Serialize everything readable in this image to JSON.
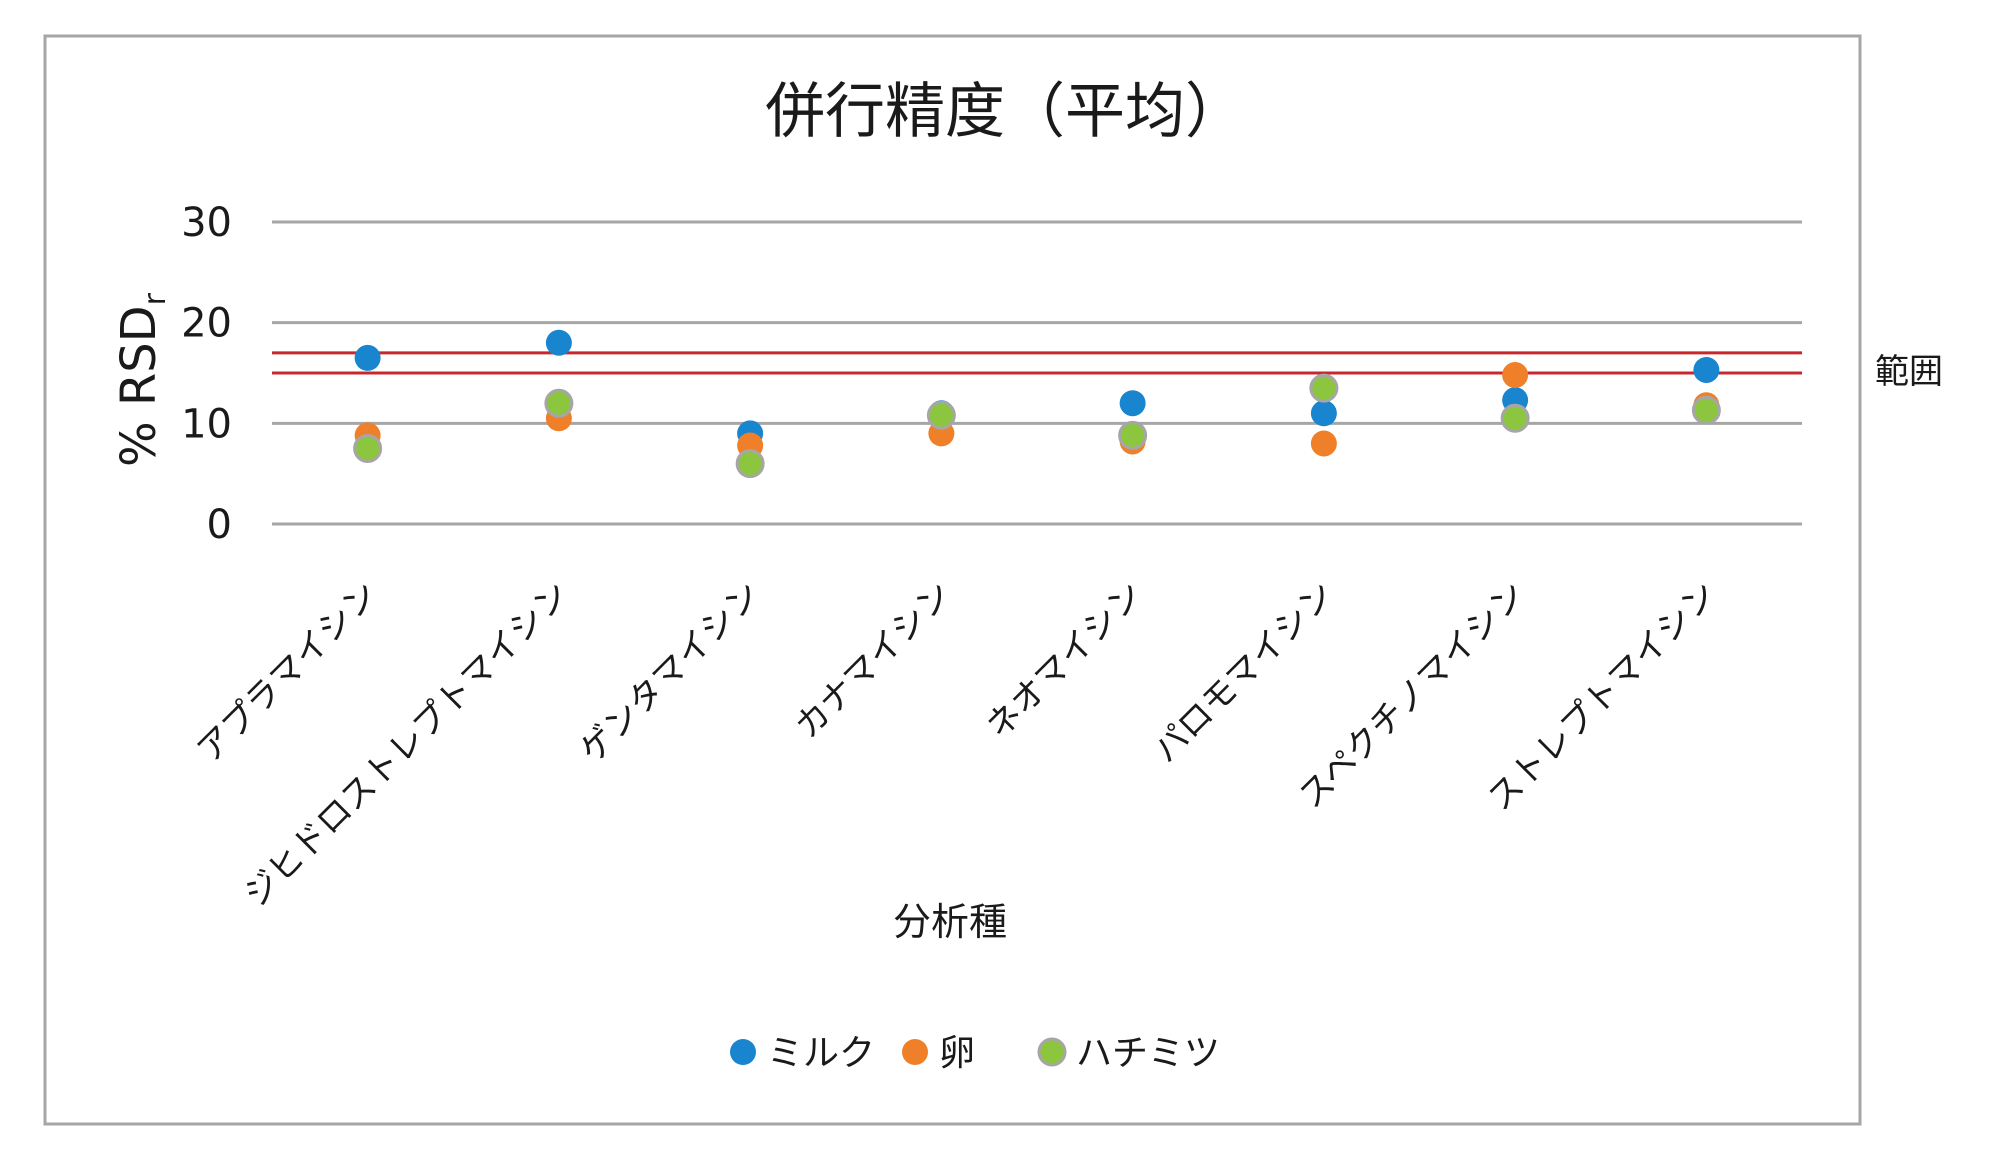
{
  "chart_data": {
    "type": "scatter",
    "title": "併行精度（平均）",
    "ylabel": "% RSD",
    "ylabel_subscript": "r",
    "xlabel": "分析種",
    "ylim": [
      0,
      30
    ],
    "yticks": [
      0,
      10,
      20,
      30
    ],
    "grid": true,
    "legend_position": "bottom",
    "categories": [
      "アプラマイシン",
      "ジヒドロストレプトマイシン",
      "ゲンタマイシン",
      "カナマイシン",
      "ネオマイシン",
      "パロモマイシン",
      "スペクチノマイシン",
      "ストレプトマイシン"
    ],
    "series": [
      {
        "name": "ミルク",
        "color": "#1a85cf",
        "values": [
          16.5,
          18.0,
          9.0,
          11.0,
          12.0,
          11.0,
          12.3,
          15.3
        ]
      },
      {
        "name": "卵",
        "color": "#f07f2a",
        "values": [
          8.8,
          10.5,
          7.8,
          9.0,
          8.2,
          8.0,
          14.8,
          11.8
        ]
      },
      {
        "name": "ハチミツ",
        "color": "#8cc63f",
        "edge": "#a6a6a6",
        "values": [
          7.5,
          12.0,
          6.0,
          10.8,
          8.8,
          13.5,
          10.5,
          11.3
        ]
      }
    ],
    "reference_range": {
      "label": "範囲",
      "lower": 15,
      "upper": 17,
      "color": "#c8282d"
    }
  }
}
